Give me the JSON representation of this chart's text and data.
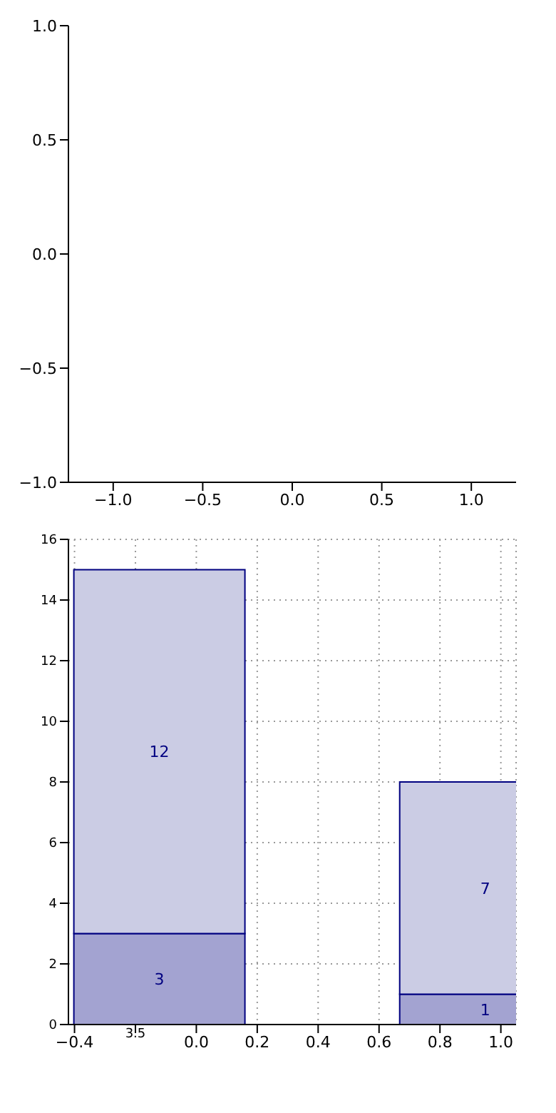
{
  "chart_data": [
    {
      "type": "scatter",
      "xlim": [
        -1.25,
        1.25
      ],
      "ylim": [
        -1,
        1
      ],
      "xticks": [
        {
          "value": -1,
          "label": "−1.0"
        },
        {
          "value": -0.5,
          "label": "−0.5"
        },
        {
          "value": 0,
          "label": "0.0"
        },
        {
          "value": 0.5,
          "label": "0.5"
        },
        {
          "value": 1,
          "label": "1.0"
        }
      ],
      "yticks": [
        {
          "value": -1,
          "label": "−1.0"
        },
        {
          "value": -0.5,
          "label": "−0.5"
        },
        {
          "value": 0,
          "label": "0.0"
        },
        {
          "value": 0.5,
          "label": "0.5"
        },
        {
          "value": 1,
          "label": "1.0"
        }
      ],
      "grid": false
    },
    {
      "type": "bar",
      "stacked": true,
      "x": [
        -0.12,
        0.95
      ],
      "series": [
        {
          "color": "#a3a3d1",
          "values": [
            3,
            1
          ]
        },
        {
          "color": "#cbcce4",
          "values": [
            12,
            7
          ]
        }
      ],
      "data_labels": true,
      "xlim": [
        -0.42,
        1.05
      ],
      "ylim": [
        0,
        16
      ],
      "xticks": [
        {
          "value": -0.4,
          "label": "−0.4"
        },
        {
          "value": -0.2,
          "label": null
        },
        {
          "value": 0,
          "label": "0.0"
        },
        {
          "value": 0.2,
          "label": "0.2"
        },
        {
          "value": 0.4,
          "label": "0.4"
        },
        {
          "value": 0.6,
          "label": "0.6"
        },
        {
          "value": 0.8,
          "label": "0.8"
        },
        {
          "value": 1,
          "label": "1.0"
        }
      ],
      "yticks": [
        0,
        2,
        4,
        6,
        8,
        10,
        12,
        14,
        16
      ],
      "grid": true,
      "annotations": [
        "3.5"
      ]
    }
  ]
}
